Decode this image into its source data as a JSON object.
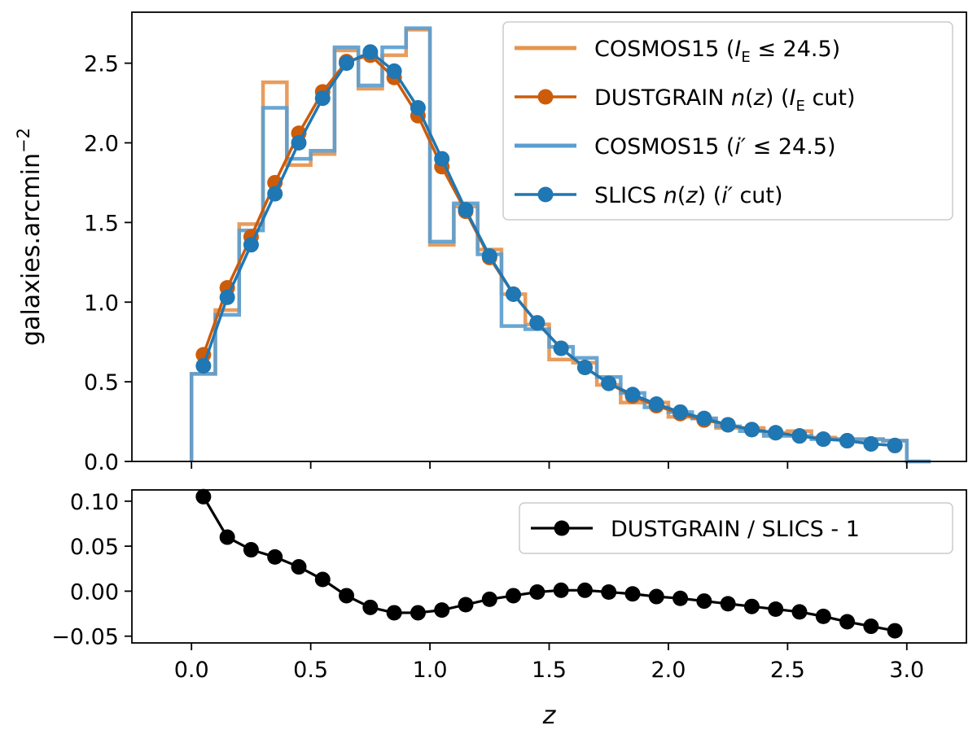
{
  "chart_data": [
    {
      "type": "line",
      "panel": "top",
      "xlabel": "",
      "ylabel": "galaxies.arcmin",
      "ylabel_sup": "−2",
      "xlim": [
        -0.25,
        3.25
      ],
      "ylim": [
        0.0,
        2.82
      ],
      "yticks": [
        0.0,
        0.5,
        1.0,
        1.5,
        2.0,
        2.5
      ],
      "ytick_labels": [
        "0.0",
        "0.5",
        "1.0",
        "1.5",
        "2.0",
        "2.5"
      ],
      "xticks": [
        0.0,
        0.5,
        1.0,
        1.5,
        2.0,
        2.5,
        3.0
      ],
      "grid": false,
      "legend_position": "top-right",
      "series": [
        {
          "name": "COSMOS15 (",
          "legend": {
            "pre": "COSMOS15 (",
            "var": "I",
            "sub": "E",
            "post": " ≤ 24.5)"
          },
          "kind": "step",
          "color": "#e6944f",
          "edges": [
            0.0,
            0.1,
            0.2,
            0.3,
            0.4,
            0.5,
            0.6,
            0.7,
            0.8,
            0.9,
            1.0,
            1.1,
            1.2,
            1.3,
            1.4,
            1.5,
            1.6,
            1.7,
            1.8,
            1.9,
            2.0,
            2.1,
            2.2,
            2.3,
            2.4,
            2.5,
            2.6,
            2.7,
            2.8,
            2.9,
            3.0,
            3.1
          ],
          "values": [
            0.55,
            0.95,
            1.49,
            2.38,
            1.86,
            1.93,
            2.58,
            2.34,
            2.55,
            2.71,
            1.36,
            1.6,
            1.33,
            1.05,
            0.86,
            0.64,
            0.62,
            0.48,
            0.37,
            0.37,
            0.28,
            0.27,
            0.21,
            0.21,
            0.18,
            0.19,
            0.15,
            0.14,
            0.14,
            0.13,
            0.0
          ]
        },
        {
          "name": "DUSTGRAIN ",
          "legend": {
            "pre": "DUSTGRAIN ",
            "var": "n",
            "mid": "(",
            "var2": "z",
            "post": ") (",
            "var3": "I",
            "sub": "E",
            "post2": " cut)"
          },
          "kind": "line-markers",
          "color": "#cc5c0a",
          "x": [
            0.05,
            0.15,
            0.25,
            0.35,
            0.45,
            0.55,
            0.65,
            0.75,
            0.85,
            0.95,
            1.05,
            1.15,
            1.25,
            1.35,
            1.45,
            1.55,
            1.65,
            1.75,
            1.85,
            1.95,
            2.05,
            2.15,
            2.25,
            2.35,
            2.45,
            2.55,
            2.65,
            2.75,
            2.85,
            2.95
          ],
          "values": [
            0.67,
            1.09,
            1.41,
            1.75,
            2.06,
            2.32,
            2.51,
            2.55,
            2.41,
            2.17,
            1.85,
            1.57,
            1.28,
            1.05,
            0.87,
            0.71,
            0.59,
            0.49,
            0.41,
            0.35,
            0.3,
            0.26,
            0.23,
            0.2,
            0.18,
            0.16,
            0.14,
            0.13,
            0.11,
            0.1
          ]
        },
        {
          "name": "COSMOS15 (",
          "legend": {
            "pre": "COSMOS15 (",
            "var": "i′",
            "post": " ≤ 24.5)"
          },
          "kind": "step",
          "color": "#5b9ecf",
          "edges": [
            0.0,
            0.1,
            0.2,
            0.3,
            0.4,
            0.5,
            0.6,
            0.7,
            0.8,
            0.9,
            1.0,
            1.1,
            1.2,
            1.3,
            1.4,
            1.5,
            1.6,
            1.7,
            1.8,
            1.9,
            2.0,
            2.1,
            2.2,
            2.3,
            2.4,
            2.5,
            2.6,
            2.7,
            2.8,
            2.9,
            3.0,
            3.1
          ],
          "values": [
            0.55,
            0.92,
            1.45,
            2.22,
            1.9,
            1.95,
            2.6,
            2.36,
            2.6,
            2.72,
            1.38,
            1.62,
            1.3,
            0.85,
            0.83,
            0.72,
            0.65,
            0.53,
            0.43,
            0.34,
            0.31,
            0.27,
            0.22,
            0.19,
            0.16,
            0.16,
            0.14,
            0.14,
            0.14,
            0.13,
            0.0
          ]
        },
        {
          "name": "SLICS ",
          "legend": {
            "pre": "SLICS ",
            "var": "n",
            "mid": "(",
            "var2": "z",
            "post": ") (",
            "var3": "i′",
            "post2": " cut)"
          },
          "kind": "line-markers",
          "color": "#1f77b4",
          "x": [
            0.05,
            0.15,
            0.25,
            0.35,
            0.45,
            0.55,
            0.65,
            0.75,
            0.85,
            0.95,
            1.05,
            1.15,
            1.25,
            1.35,
            1.45,
            1.55,
            1.65,
            1.75,
            1.85,
            1.95,
            2.05,
            2.15,
            2.25,
            2.35,
            2.45,
            2.55,
            2.65,
            2.75,
            2.85,
            2.95
          ],
          "values": [
            0.6,
            1.03,
            1.36,
            1.68,
            2.0,
            2.28,
            2.5,
            2.57,
            2.45,
            2.22,
            1.9,
            1.58,
            1.29,
            1.05,
            0.87,
            0.71,
            0.59,
            0.49,
            0.42,
            0.36,
            0.31,
            0.27,
            0.23,
            0.2,
            0.18,
            0.16,
            0.14,
            0.13,
            0.11,
            0.1
          ]
        }
      ]
    },
    {
      "type": "line",
      "panel": "bottom",
      "xlabel": "z",
      "ylabel": "",
      "xlim": [
        -0.25,
        3.25
      ],
      "ylim": [
        -0.0575,
        0.1125
      ],
      "yticks": [
        0.1,
        0.05,
        0.0,
        -0.05
      ],
      "ytick_labels": [
        "0.10",
        "0.05",
        "0.00",
        "−0.05"
      ],
      "xticks": [
        0.0,
        0.5,
        1.0,
        1.5,
        2.0,
        2.5,
        3.0
      ],
      "xtick_labels": [
        "0.0",
        "0.5",
        "1.0",
        "1.5",
        "2.0",
        "2.5",
        "3.0"
      ],
      "grid": false,
      "legend_position": "top-right",
      "series": [
        {
          "name": "DUSTGRAIN / SLICS - 1",
          "kind": "line-markers",
          "color": "#000000",
          "x": [
            0.05,
            0.15,
            0.25,
            0.35,
            0.45,
            0.55,
            0.65,
            0.75,
            0.85,
            0.95,
            1.05,
            1.15,
            1.25,
            1.35,
            1.45,
            1.55,
            1.65,
            1.75,
            1.85,
            1.95,
            2.05,
            2.15,
            2.25,
            2.35,
            2.45,
            2.55,
            2.65,
            2.75,
            2.85,
            2.95
          ],
          "values": [
            0.105,
            0.06,
            0.046,
            0.038,
            0.027,
            0.013,
            -0.005,
            -0.018,
            -0.024,
            -0.024,
            -0.021,
            -0.015,
            -0.009,
            -0.005,
            -0.001,
            0.001,
            0.001,
            -0.001,
            -0.003,
            -0.006,
            -0.008,
            -0.011,
            -0.014,
            -0.017,
            -0.02,
            -0.023,
            -0.028,
            -0.034,
            -0.039,
            -0.044
          ]
        }
      ]
    }
  ]
}
